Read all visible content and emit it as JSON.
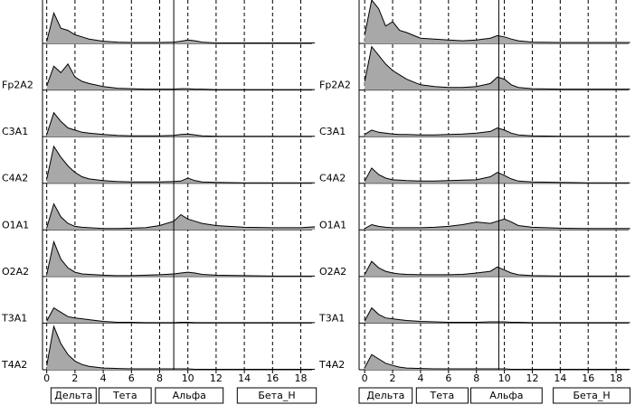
{
  "chart_data": [
    {
      "type": "area",
      "xlim": [
        -0.3,
        18.8
      ],
      "ylim": [
        0,
        1
      ],
      "xticks": [
        0,
        2,
        4,
        6,
        8,
        10,
        12,
        14,
        16,
        18
      ],
      "cursor": 9.0,
      "x": [
        0,
        0.5,
        1,
        1.5,
        2,
        2.5,
        3,
        4,
        5,
        6,
        7,
        8,
        9,
        9.5,
        10,
        10.5,
        11,
        12,
        14,
        16,
        18,
        19
      ],
      "series": [
        {
          "name": null,
          "color": "#a8a8a8",
          "values": [
            0.05,
            0.7,
            0.35,
            0.3,
            0.2,
            0.15,
            0.1,
            0.05,
            0.03,
            0.02,
            0.02,
            0.02,
            0.03,
            0.05,
            0.08,
            0.06,
            0.03,
            0.01,
            0.01,
            0.01,
            0.01,
            0.01
          ]
        },
        {
          "name": "Fp2A2",
          "color": "#a8a8a8",
          "values": [
            0.1,
            0.55,
            0.4,
            0.6,
            0.3,
            0.2,
            0.15,
            0.08,
            0.04,
            0.03,
            0.02,
            0.02,
            0.02,
            0.03,
            0.03,
            0.02,
            0.02,
            0.01,
            0.01,
            0.01,
            0.01,
            0.01
          ]
        },
        {
          "name": "C3A1",
          "color": "#a8a8a8",
          "values": [
            0.05,
            0.55,
            0.35,
            0.2,
            0.15,
            0.1,
            0.08,
            0.05,
            0.03,
            0.02,
            0.02,
            0.02,
            0.03,
            0.05,
            0.06,
            0.04,
            0.02,
            0.01,
            0.01,
            0.01,
            0.01,
            0.01
          ]
        },
        {
          "name": "C4A2",
          "color": "#a8a8a8",
          "values": [
            0.1,
            0.85,
            0.6,
            0.4,
            0.25,
            0.15,
            0.1,
            0.06,
            0.04,
            0.03,
            0.03,
            0.03,
            0.04,
            0.05,
            0.12,
            0.06,
            0.03,
            0.02,
            0.01,
            0.01,
            0.01,
            0.01
          ]
        },
        {
          "name": "O1A1",
          "color": "#a8a8a8",
          "values": [
            0.05,
            0.6,
            0.3,
            0.15,
            0.08,
            0.06,
            0.05,
            0.03,
            0.03,
            0.04,
            0.05,
            0.1,
            0.2,
            0.35,
            0.25,
            0.2,
            0.15,
            0.1,
            0.06,
            0.05,
            0.05,
            0.07
          ]
        },
        {
          "name": "O2A2",
          "color": "#a8a8a8",
          "values": [
            0.05,
            0.8,
            0.4,
            0.2,
            0.1,
            0.06,
            0.05,
            0.03,
            0.02,
            0.02,
            0.03,
            0.04,
            0.06,
            0.08,
            0.1,
            0.08,
            0.05,
            0.03,
            0.02,
            0.01,
            0.01,
            0.01
          ]
        },
        {
          "name": "T3A1",
          "color": "#a8a8a8",
          "values": [
            0.05,
            0.35,
            0.25,
            0.15,
            0.12,
            0.1,
            0.08,
            0.04,
            0.02,
            0.02,
            0.01,
            0.01,
            0.01,
            0.02,
            0.02,
            0.01,
            0.01,
            0.01,
            0.01,
            0.01,
            0.01,
            0.01
          ]
        },
        {
          "name": "T4A2",
          "color": "#a8a8a8",
          "values": [
            0.1,
            1.0,
            0.6,
            0.35,
            0.2,
            0.12,
            0.08,
            0.04,
            0.03,
            0.02,
            0.02,
            0.02,
            0.02,
            0.02,
            0.02,
            0.01,
            0.01,
            0.01,
            0.01,
            0.01,
            0.01,
            0.01
          ]
        }
      ],
      "bands": [
        {
          "label": "Дельта",
          "from": 0.3,
          "to": 3.5
        },
        {
          "label": "Тета",
          "from": 3.7,
          "to": 7.4
        },
        {
          "label": "Альфа",
          "from": 7.7,
          "to": 12.5
        },
        {
          "label": "Бета_Н",
          "from": 13.5,
          "to": 19.1
        }
      ]
    },
    {
      "type": "area",
      "xlim": [
        -0.4,
        18.9
      ],
      "ylim": [
        0,
        1
      ],
      "xticks": [
        0,
        2,
        4,
        6,
        8,
        10,
        12,
        14,
        16,
        18
      ],
      "cursor": 9.6,
      "x": [
        0,
        0.5,
        1,
        1.5,
        2,
        2.5,
        3,
        4,
        5,
        6,
        7,
        8,
        9,
        9.5,
        10,
        10.5,
        11,
        12,
        14,
        16,
        18,
        19
      ],
      "series": [
        {
          "name": null,
          "color": "#a8a8a8",
          "values": [
            0.2,
            1.0,
            0.8,
            0.4,
            0.5,
            0.3,
            0.25,
            0.12,
            0.1,
            0.08,
            0.06,
            0.08,
            0.12,
            0.18,
            0.15,
            0.1,
            0.06,
            0.03,
            0.02,
            0.02,
            0.02,
            0.02
          ]
        },
        {
          "name": "Fp2A2",
          "color": "#a8a8a8",
          "values": [
            0.2,
            1.0,
            0.8,
            0.6,
            0.45,
            0.35,
            0.25,
            0.12,
            0.08,
            0.06,
            0.06,
            0.08,
            0.15,
            0.3,
            0.25,
            0.12,
            0.06,
            0.03,
            0.02,
            0.02,
            0.02,
            0.02
          ]
        },
        {
          "name": "C3A1",
          "color": "#a8a8a8",
          "values": [
            0.05,
            0.15,
            0.1,
            0.08,
            0.06,
            0.05,
            0.05,
            0.04,
            0.04,
            0.05,
            0.06,
            0.08,
            0.12,
            0.2,
            0.15,
            0.08,
            0.04,
            0.02,
            0.01,
            0.01,
            0.01,
            0.01
          ]
        },
        {
          "name": "C4A2",
          "color": "#a8a8a8",
          "values": [
            0.05,
            0.35,
            0.2,
            0.12,
            0.08,
            0.07,
            0.06,
            0.05,
            0.05,
            0.06,
            0.07,
            0.08,
            0.15,
            0.25,
            0.18,
            0.1,
            0.05,
            0.03,
            0.02,
            0.01,
            0.01,
            0.01
          ]
        },
        {
          "name": "O1A1",
          "color": "#a8a8a8",
          "values": [
            0.03,
            0.12,
            0.08,
            0.06,
            0.05,
            0.05,
            0.05,
            0.05,
            0.06,
            0.08,
            0.12,
            0.18,
            0.15,
            0.2,
            0.25,
            0.18,
            0.1,
            0.06,
            0.04,
            0.03,
            0.03,
            0.03
          ]
        },
        {
          "name": "O2A2",
          "color": "#a8a8a8",
          "values": [
            0.05,
            0.35,
            0.2,
            0.12,
            0.08,
            0.06,
            0.05,
            0.04,
            0.04,
            0.04,
            0.05,
            0.08,
            0.12,
            0.22,
            0.15,
            0.08,
            0.04,
            0.02,
            0.01,
            0.01,
            0.01,
            0.01
          ]
        },
        {
          "name": "T3A1",
          "color": "#a8a8a8",
          "values": [
            0.05,
            0.35,
            0.2,
            0.12,
            0.1,
            0.08,
            0.06,
            0.04,
            0.03,
            0.02,
            0.02,
            0.02,
            0.03,
            0.03,
            0.03,
            0.02,
            0.02,
            0.01,
            0.01,
            0.01,
            0.01,
            0.01
          ]
        },
        {
          "name": "T4A2",
          "color": "#a8a8a8",
          "values": [
            0.05,
            0.35,
            0.25,
            0.15,
            0.1,
            0.06,
            0.04,
            0.03,
            0.02,
            0.02,
            0.02,
            0.02,
            0.02,
            0.02,
            0.02,
            0.01,
            0.01,
            0.01,
            0.01,
            0.01,
            0.01,
            0.01
          ]
        }
      ],
      "bands": [
        {
          "label": "Дельта",
          "from": -0.4,
          "to": 3.4
        },
        {
          "label": "Тета",
          "from": 3.7,
          "to": 7.4
        },
        {
          "label": "Альфа",
          "from": 7.6,
          "to": 12.7
        },
        {
          "label": "Бета_Н",
          "from": 13.5,
          "to": 19.0
        }
      ]
    }
  ]
}
